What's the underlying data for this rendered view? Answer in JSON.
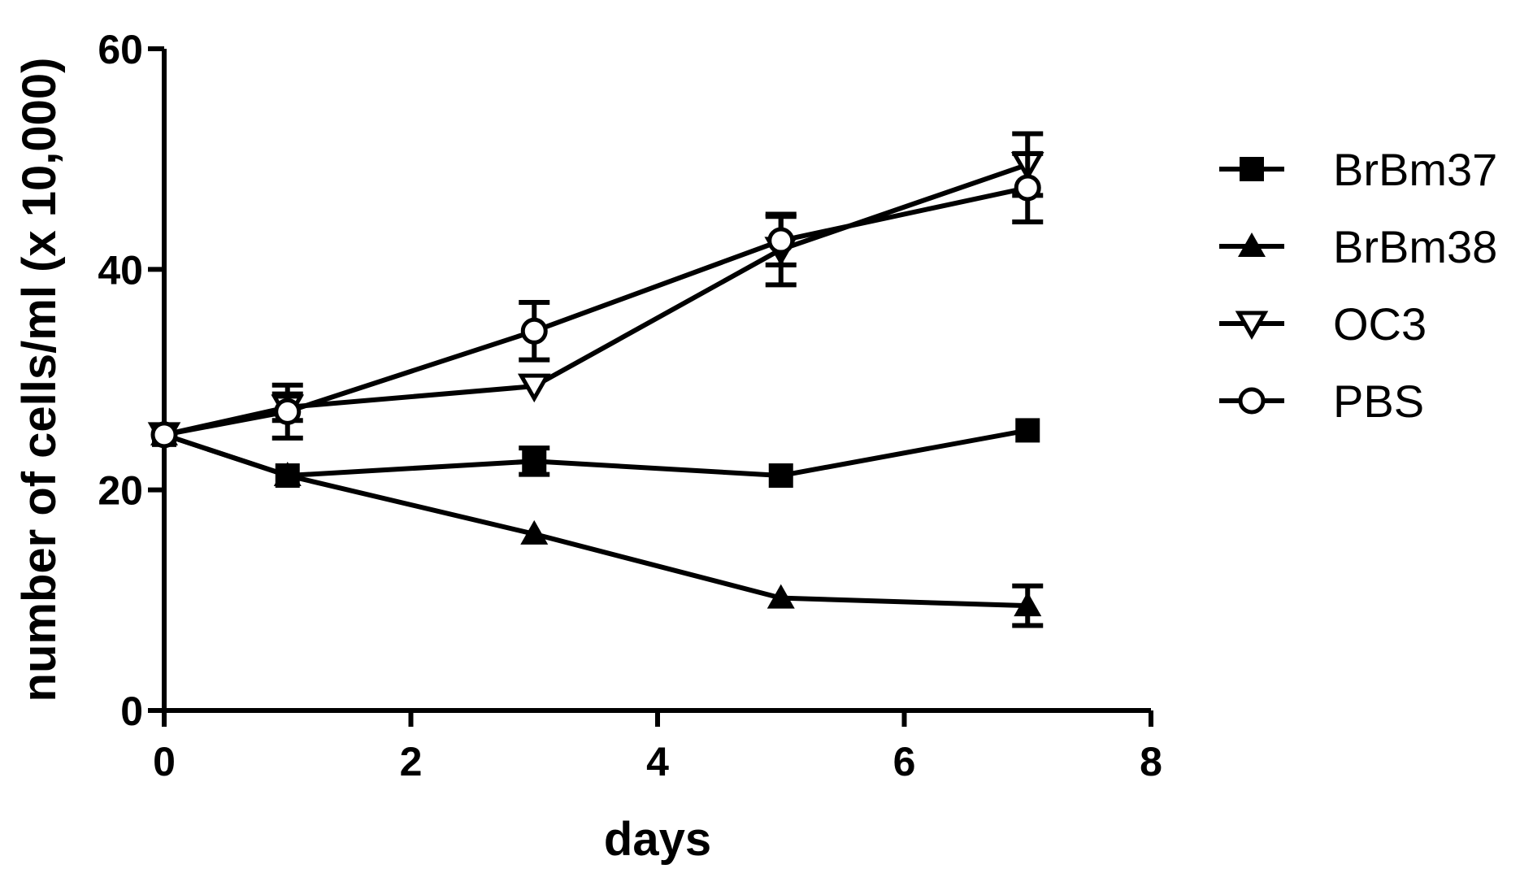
{
  "chart_data": {
    "type": "line",
    "title": "",
    "xlabel": "days",
    "ylabel": "number of cells/ml (x 10,000)",
    "xlim": [
      0,
      8
    ],
    "ylim": [
      0,
      60
    ],
    "xticks": [
      0,
      2,
      4,
      6,
      8
    ],
    "yticks": [
      0,
      20,
      40,
      60
    ],
    "grid": false,
    "legend_position": "right",
    "series": [
      {
        "name": "BrBm37",
        "marker": "filled-square",
        "color": "#000000",
        "x": [
          0,
          1,
          3,
          5,
          7
        ],
        "y": [
          25.0,
          21.3,
          22.6,
          21.3,
          25.4
        ],
        "err": [
          0,
          0,
          1.2,
          0,
          0
        ]
      },
      {
        "name": "BrBm38",
        "marker": "filled-triangle-up",
        "color": "#000000",
        "x": [
          0,
          1,
          3,
          5,
          7
        ],
        "y": [
          25.0,
          21.3,
          16.0,
          10.2,
          9.5
        ],
        "err": [
          0,
          0,
          0,
          0,
          1.8
        ]
      },
      {
        "name": "OC3",
        "marker": "open-triangle-down",
        "color": "#000000",
        "x": [
          0,
          1,
          3,
          5,
          7
        ],
        "y": [
          25.0,
          27.5,
          29.4,
          41.8,
          49.5
        ],
        "err": [
          0,
          1.2,
          0,
          3.2,
          2.8
        ]
      },
      {
        "name": "PBS",
        "marker": "open-circle",
        "color": "#000000",
        "x": [
          0,
          1,
          3,
          5,
          7
        ],
        "y": [
          25.0,
          27.1,
          34.4,
          42.6,
          47.4
        ],
        "err": [
          0,
          2.4,
          2.6,
          2.2,
          3.1
        ]
      }
    ]
  }
}
